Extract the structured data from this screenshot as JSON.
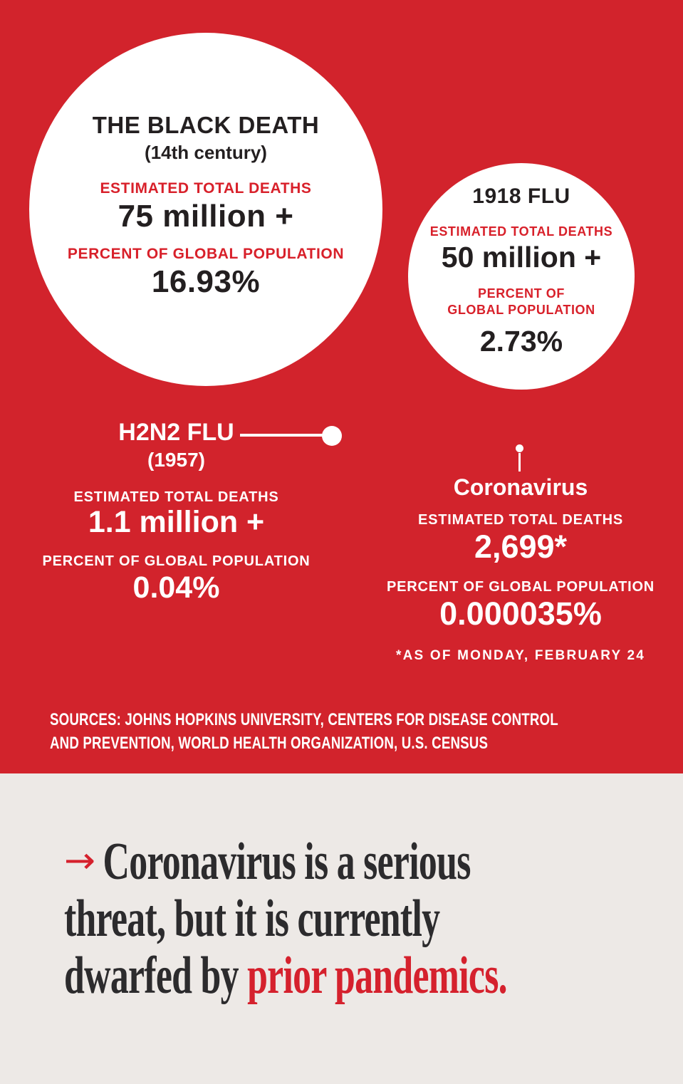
{
  "colors": {
    "background_red": "#d2232c",
    "circle_label_red": "#d8202a",
    "dark_text": "#231f20",
    "white": "#ffffff",
    "footer_background": "#ede9e6",
    "headline_dark": "#2c2b2d",
    "headline_red": "#d5212d"
  },
  "pandemics": [
    {
      "name": "THE BLACK DEATH",
      "period": "(14th century)",
      "deaths_label": "ESTIMATED TOTAL DEATHS",
      "deaths": "75 million +",
      "percent_label": "PERCENT OF GLOBAL POPULATION",
      "percent": "16.93%"
    },
    {
      "name": "1918 FLU",
      "deaths_label": "ESTIMATED TOTAL DEATHS",
      "deaths": "50 million +",
      "percent_label": "PERCENT OF\nGLOBAL POPULATION",
      "percent": "2.73%"
    },
    {
      "name": "H2N2 FLU",
      "period": "(1957)",
      "deaths_label": "ESTIMATED TOTAL DEATHS",
      "deaths": "1.1 million +",
      "percent_label": "PERCENT OF GLOBAL POPULATION",
      "percent": "0.04%"
    },
    {
      "name": "Coronavirus",
      "deaths_label": "ESTIMATED TOTAL DEATHS",
      "deaths": "2,699*",
      "percent_label": "PERCENT OF GLOBAL POPULATION",
      "percent": "0.000035%",
      "footnote": "*AS OF MONDAY, FEBRUARY 24"
    }
  ],
  "sources": "SOURCES: JOHNS HOPKINS UNIVERSITY, CENTERS FOR DISEASE CONTROL\nAND PREVENTION, WORLD HEALTH ORGANIZATION, U.S. CENSUS",
  "headline": {
    "arrow": "→",
    "line1": "Coronavirus is a serious",
    "line2": "threat, but it is currently",
    "line3_dark": "dwarfed by ",
    "line3_red": "prior pandemics."
  },
  "chart_data": {
    "type": "bubble",
    "title": "Pandemic death tolls compared (bubble area proportional to estimated total deaths)",
    "series": [
      {
        "name": "The Black Death (14th century)",
        "estimated_total_deaths_display": "75 million +",
        "deaths_value": 75000000,
        "percent_of_global_population": 16.93,
        "bubble_radius_px": 248
      },
      {
        "name": "1918 Flu",
        "estimated_total_deaths_display": "50 million +",
        "deaths_value": 50000000,
        "percent_of_global_population": 2.73,
        "bubble_radius_px": 159
      },
      {
        "name": "H2N2 Flu (1957)",
        "estimated_total_deaths_display": "1.1 million +",
        "deaths_value": 1100000,
        "percent_of_global_population": 0.04,
        "bubble_radius_px": 14
      },
      {
        "name": "Coronavirus",
        "estimated_total_deaths_display": "2,699*",
        "deaths_value": 2699,
        "percent_of_global_population": 3.5e-05,
        "bubble_radius_px": 5.5,
        "footnote": "*AS OF MONDAY, FEBRUARY 24"
      }
    ],
    "legend_position": "none",
    "sources": "Johns Hopkins University, Centers for Disease Control and Prevention, World Health Organization, U.S. Census"
  }
}
